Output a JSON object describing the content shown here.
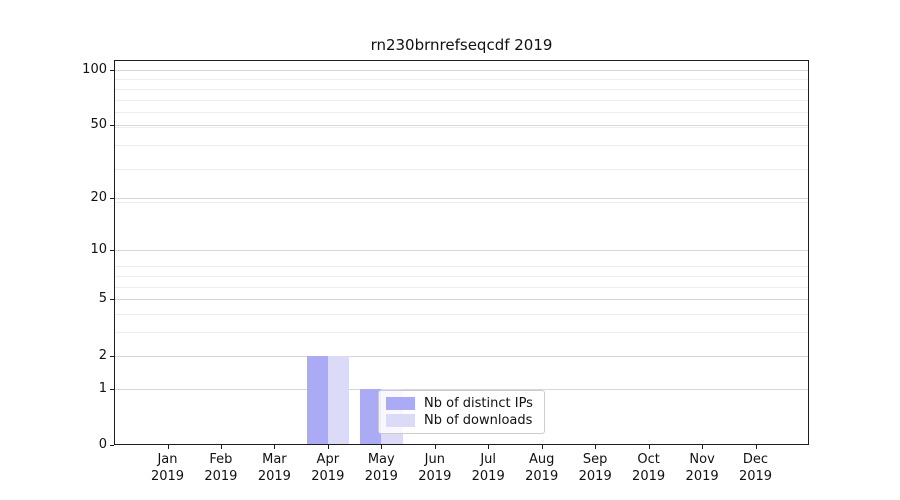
{
  "title": "rn230brnrefseqcdf 2019",
  "chart_data": {
    "type": "bar",
    "title": "rn230brnrefseqcdf 2019",
    "categories": [
      "Jan",
      "Feb",
      "Mar",
      "Apr",
      "May",
      "Jun",
      "Jul",
      "Aug",
      "Sep",
      "Oct",
      "Nov",
      "Dec"
    ],
    "year_label": "2019",
    "series": [
      {
        "name": "Nb of distinct IPs",
        "color": "#aaaaf5",
        "values": [
          0,
          0,
          0,
          2,
          1,
          0,
          0,
          0,
          0,
          0,
          0,
          0
        ]
      },
      {
        "name": "Nb of downloads",
        "color": "#dbdbf8",
        "values": [
          0,
          0,
          0,
          2,
          1,
          0,
          0,
          0,
          0,
          0,
          0,
          0
        ]
      }
    ],
    "xlabel": "",
    "ylabel": "",
    "y_scale": "log1p",
    "y_ticks": [
      0,
      1,
      2,
      5,
      10,
      20,
      50,
      100
    ],
    "y_minor_gridlines_1p": [
      4,
      5,
      7,
      8,
      9,
      20,
      30,
      40,
      50,
      60,
      70,
      80,
      90
    ],
    "ylim": [
      0,
      113
    ],
    "grid": "both",
    "legend_position": "lower-center",
    "colors": {
      "grid_major": "#d6d6d6",
      "grid_minor": "#ededed",
      "spine": "#1c1c1c",
      "background": "#ffffff"
    }
  }
}
